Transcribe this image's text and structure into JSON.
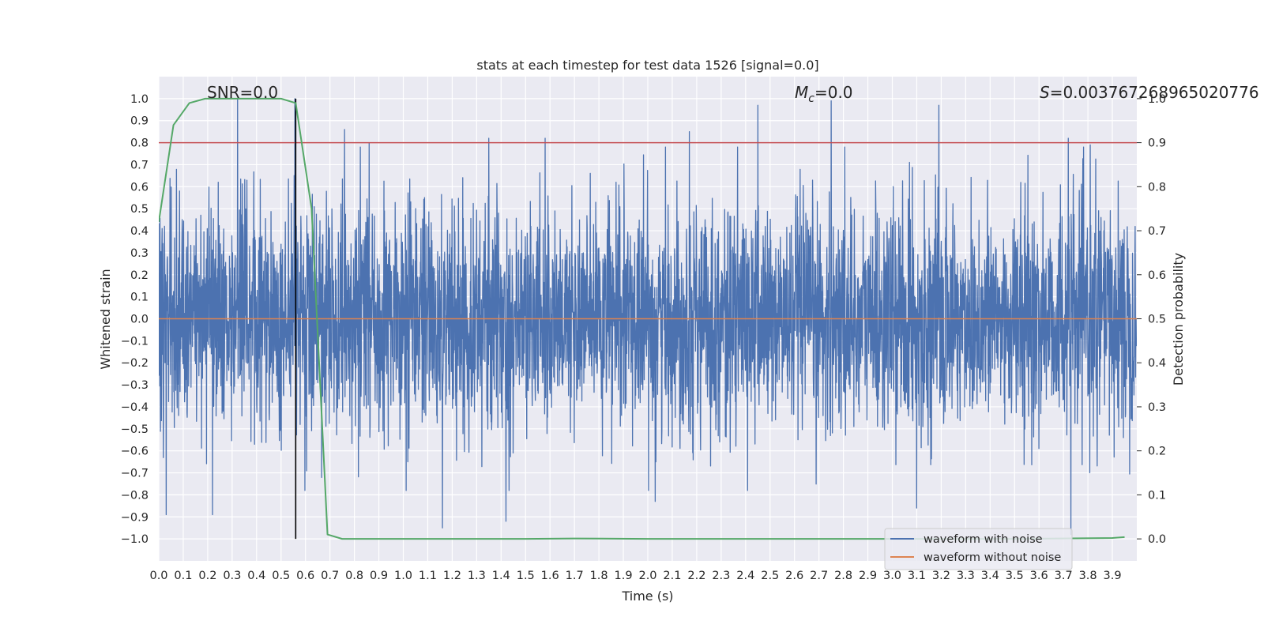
{
  "chart_data": {
    "type": "line",
    "title": "stats at each timestep for test data 1526 [signal=0.0]",
    "xlabel": "Time (s)",
    "ylabel": "Whitened strain",
    "y2label": "Detection probability",
    "xlim": [
      0.0,
      4.0
    ],
    "ylim": [
      -1.1,
      1.1
    ],
    "y2lim": [
      -0.05,
      1.05
    ],
    "grid": true,
    "x_ticks": [
      "0.0",
      "0.1",
      "0.2",
      "0.3",
      "0.4",
      "0.5",
      "0.6",
      "0.7",
      "0.8",
      "0.9",
      "1.0",
      "1.1",
      "1.2",
      "1.3",
      "1.4",
      "1.5",
      "1.6",
      "1.7",
      "1.8",
      "1.9",
      "2.0",
      "2.1",
      "2.2",
      "2.3",
      "2.4",
      "2.5",
      "2.6",
      "2.7",
      "2.8",
      "2.9",
      "3.0",
      "3.1",
      "3.2",
      "3.3",
      "3.4",
      "3.5",
      "3.6",
      "3.7",
      "3.8",
      "3.9"
    ],
    "y_ticks": [
      "1.0",
      "0.9",
      "0.8",
      "0.7",
      "0.6",
      "0.5",
      "0.4",
      "0.3",
      "0.2",
      "0.1",
      "0.0",
      "−0.1",
      "−0.2",
      "−0.3",
      "−0.4",
      "−0.5",
      "−0.6",
      "−0.7",
      "−0.8",
      "−0.9",
      "−1.0"
    ],
    "y2_ticks": [
      "1.0",
      "0.9",
      "0.8",
      "0.7",
      "0.6",
      "0.5",
      "0.4",
      "0.3",
      "0.2",
      "0.1",
      "0.0"
    ],
    "annotations": {
      "snr": "SNR=0.0",
      "mc_symbol": "M",
      "mc_sub": "c",
      "mc_value": "=0.0",
      "s_symbol": "S",
      "s_value": "=0.003767268965020776"
    },
    "threshold": {
      "axis": "right",
      "value": 0.9,
      "color": "#C44E52"
    },
    "marker_line": {
      "x": 0.56,
      "y_from": -1.0,
      "y_to": 1.0,
      "color": "#000000"
    },
    "series": [
      {
        "name": "waveform with noise",
        "color": "#4C72B0",
        "axis": "left",
        "sample_rate_hz": 1024,
        "duration_s": 4.0,
        "approx_std": 0.25,
        "peak_points": [
          {
            "x": 0.322,
            "y": 1.0
          },
          {
            "x": 0.557,
            "y": 1.0
          },
          {
            "x": 0.76,
            "y": 0.86
          },
          {
            "x": 0.86,
            "y": 0.8
          },
          {
            "x": 1.35,
            "y": 0.82
          },
          {
            "x": 1.58,
            "y": 0.82
          },
          {
            "x": 2.17,
            "y": 0.85
          },
          {
            "x": 2.45,
            "y": 0.97
          },
          {
            "x": 2.75,
            "y": 0.99
          },
          {
            "x": 3.1,
            "y": 0.84
          },
          {
            "x": 3.19,
            "y": 0.97
          },
          {
            "x": 3.72,
            "y": 0.82
          },
          {
            "x": 3.81,
            "y": 0.79
          },
          {
            "x": 0.03,
            "y": -0.89
          },
          {
            "x": 0.22,
            "y": -0.89
          },
          {
            "x": 1.16,
            "y": -0.95
          },
          {
            "x": 1.42,
            "y": -0.92
          },
          {
            "x": 2.03,
            "y": -0.83
          },
          {
            "x": 3.1,
            "y": -0.86
          },
          {
            "x": 3.73,
            "y": -0.98
          }
        ]
      },
      {
        "name": "waveform without noise",
        "color": "#DD8452",
        "axis": "left",
        "x": [
          0.0,
          4.0
        ],
        "y": [
          0.0,
          0.0
        ]
      },
      {
        "name": "detection probability",
        "color": "#55A868",
        "axis": "right",
        "x": [
          0.0,
          0.06,
          0.125,
          0.19,
          0.25,
          0.31,
          0.375,
          0.44,
          0.5,
          0.56,
          0.625,
          0.69,
          0.75,
          0.8,
          1.0,
          1.5,
          1.7,
          2.0,
          2.5,
          3.0,
          3.5,
          3.9,
          3.95
        ],
        "y": [
          0.72,
          0.94,
          0.99,
          1.0,
          1.0,
          1.0,
          1.0,
          1.0,
          1.0,
          0.99,
          0.75,
          0.01,
          0.0,
          0.0,
          0.0,
          0.0,
          0.001,
          0.0,
          0.0,
          0.0,
          0.0,
          0.002,
          0.004
        ]
      }
    ],
    "legend": {
      "placement": "lower-right",
      "entries": [
        "waveform with noise",
        "waveform without noise"
      ]
    }
  }
}
